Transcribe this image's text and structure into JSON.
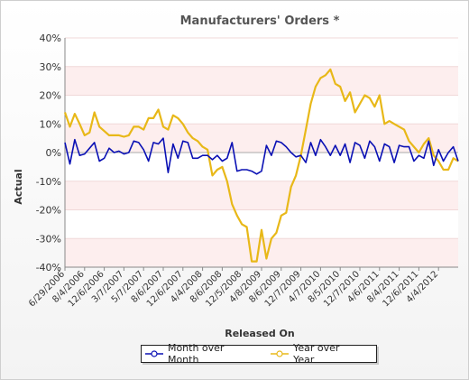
{
  "chart_data": {
    "type": "line",
    "title": "Manufacturers' Orders *",
    "xlabel": "Released On",
    "ylabel": "Actual",
    "ylim": [
      -40,
      40
    ],
    "yticks": [
      40,
      30,
      20,
      10,
      0,
      -10,
      -20,
      -30,
      -40
    ],
    "ytick_labels": [
      "40%",
      "30%",
      "20%",
      "10%",
      "0%",
      "-10%",
      "-20%",
      "-30%",
      "-40%"
    ],
    "x_tick_labels": [
      "6/29/2006",
      "8/4/2006",
      "12/6/2006",
      "3/7/2007",
      "5/7/2007",
      "8/6/2007",
      "12/6/2007",
      "4/4/2008",
      "8/6/2008",
      "12/5/2008",
      "4/8/2009",
      "8/6/2009",
      "12/7/2009",
      "4/7/2010",
      "8/5/2010",
      "12/7/2010",
      "4/6/2011",
      "8/4/2011",
      "12/6/2011",
      "4/4/2012"
    ],
    "x_tick_index": [
      0,
      4,
      8,
      12,
      16,
      20,
      24,
      28,
      32,
      36,
      40,
      44,
      48,
      52,
      56,
      60,
      64,
      68,
      72,
      76
    ],
    "legend_position": "bottom",
    "series": [
      {
        "name": "Month over Month",
        "color": "#0a10b4",
        "values": [
          3.5,
          -4,
          4.5,
          -1,
          -0.5,
          1.5,
          3.5,
          -3,
          -2,
          1.5,
          0,
          0.5,
          -0.5,
          0,
          4,
          3.5,
          1,
          -3,
          3.5,
          3,
          5,
          -7,
          3,
          -2,
          4,
          3.5,
          -2,
          -2,
          -1,
          -1,
          -2.5,
          -1,
          -3,
          -2,
          3.5,
          -6.5,
          -6,
          -6,
          -6.5,
          -7.5,
          -6.5,
          2.5,
          -1,
          4,
          3.5,
          2,
          0,
          -1.5,
          -1,
          -3.5,
          3.5,
          -1,
          4.5,
          2,
          -1,
          2.5,
          -1,
          3,
          -3.5,
          3.5,
          2.5,
          -2,
          4,
          2,
          -3,
          3,
          2,
          -3.5,
          2.5,
          2,
          2,
          -3,
          -1,
          -2,
          4,
          -4.5,
          1,
          -3,
          0,
          2,
          -3
        ]
      },
      {
        "name": "Year over Year",
        "color": "#e8b818",
        "values": [
          14,
          9,
          13.5,
          10,
          6,
          7,
          14,
          9,
          7.5,
          6,
          6,
          6,
          5.5,
          6,
          9,
          9,
          8,
          12,
          12,
          15,
          9,
          8,
          13,
          12,
          10,
          7,
          5,
          4,
          2,
          1,
          -8,
          -6,
          -5,
          -10,
          -18,
          -22,
          -25,
          -26,
          -38,
          -38,
          -27,
          -37,
          -30,
          -28,
          -22,
          -21,
          -12,
          -8,
          -1,
          8,
          17,
          23,
          26,
          27,
          29,
          24,
          23,
          18,
          21,
          14,
          17,
          20,
          19,
          16,
          20,
          10,
          11,
          10,
          9,
          8,
          4,
          2,
          0,
          3,
          5,
          -1,
          -3,
          -6,
          -6,
          -2,
          -3
        ]
      }
    ]
  }
}
